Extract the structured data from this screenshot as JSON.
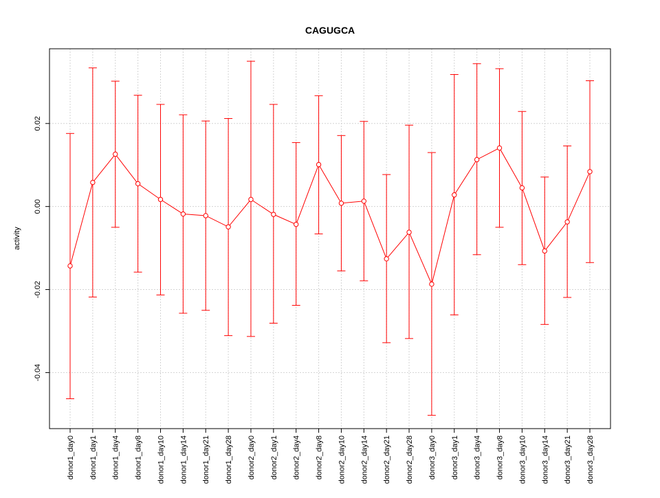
{
  "chart_data": {
    "type": "line",
    "title": "CAGUGCA",
    "xlabel": "",
    "ylabel": "activity",
    "ylim": [
      -0.0535,
      0.038
    ],
    "yticks": [
      -0.04,
      -0.02,
      0.0,
      0.02
    ],
    "ytick_labels": [
      "-0.04",
      "-0.02",
      "0.00",
      "0.02"
    ],
    "grid": true,
    "series_color": "#ff0000",
    "grid_color": "#d3d3d3",
    "categories": [
      "donor1_day0",
      "donor1_day1",
      "donor1_day4",
      "donor1_day8",
      "donor1_day10",
      "donor1_day14",
      "donor1_day21",
      "donor1_day28",
      "donor2_day0",
      "donor2_day1",
      "donor2_day4",
      "donor2_day8",
      "donor2_day10",
      "donor2_day14",
      "donor2_day21",
      "donor2_day28",
      "donor3_day0",
      "donor3_day1",
      "donor3_day4",
      "donor3_day8",
      "donor3_day10",
      "donor3_day14",
      "donor3_day21",
      "donor3_day28"
    ],
    "values": [
      -0.0143,
      0.0058,
      0.0126,
      0.0055,
      0.0017,
      -0.0018,
      -0.0022,
      -0.0049,
      0.0017,
      -0.0019,
      -0.0043,
      0.0101,
      0.0008,
      0.0013,
      -0.0126,
      -0.0062,
      -0.0187,
      0.0028,
      0.0113,
      0.0141,
      0.0045,
      -0.0107,
      -0.0037,
      0.0084
    ],
    "upper": [
      0.0176,
      0.0334,
      0.0302,
      0.0268,
      0.0246,
      0.0221,
      0.0206,
      0.0212,
      0.035,
      0.0246,
      0.0154,
      0.0267,
      0.0171,
      0.0205,
      0.0077,
      0.0196,
      0.013,
      0.0318,
      0.0344,
      0.0332,
      0.0229,
      0.0071,
      0.0146,
      0.0303
    ],
    "lower": [
      -0.0463,
      -0.0218,
      -0.005,
      -0.0158,
      -0.0213,
      -0.0257,
      -0.025,
      -0.0311,
      -0.0313,
      -0.0281,
      -0.0238,
      -0.0066,
      -0.0155,
      -0.0179,
      -0.0328,
      -0.0318,
      -0.0503,
      -0.0261,
      -0.0116,
      -0.005,
      -0.014,
      -0.0284,
      -0.0219,
      -0.0135
    ]
  }
}
